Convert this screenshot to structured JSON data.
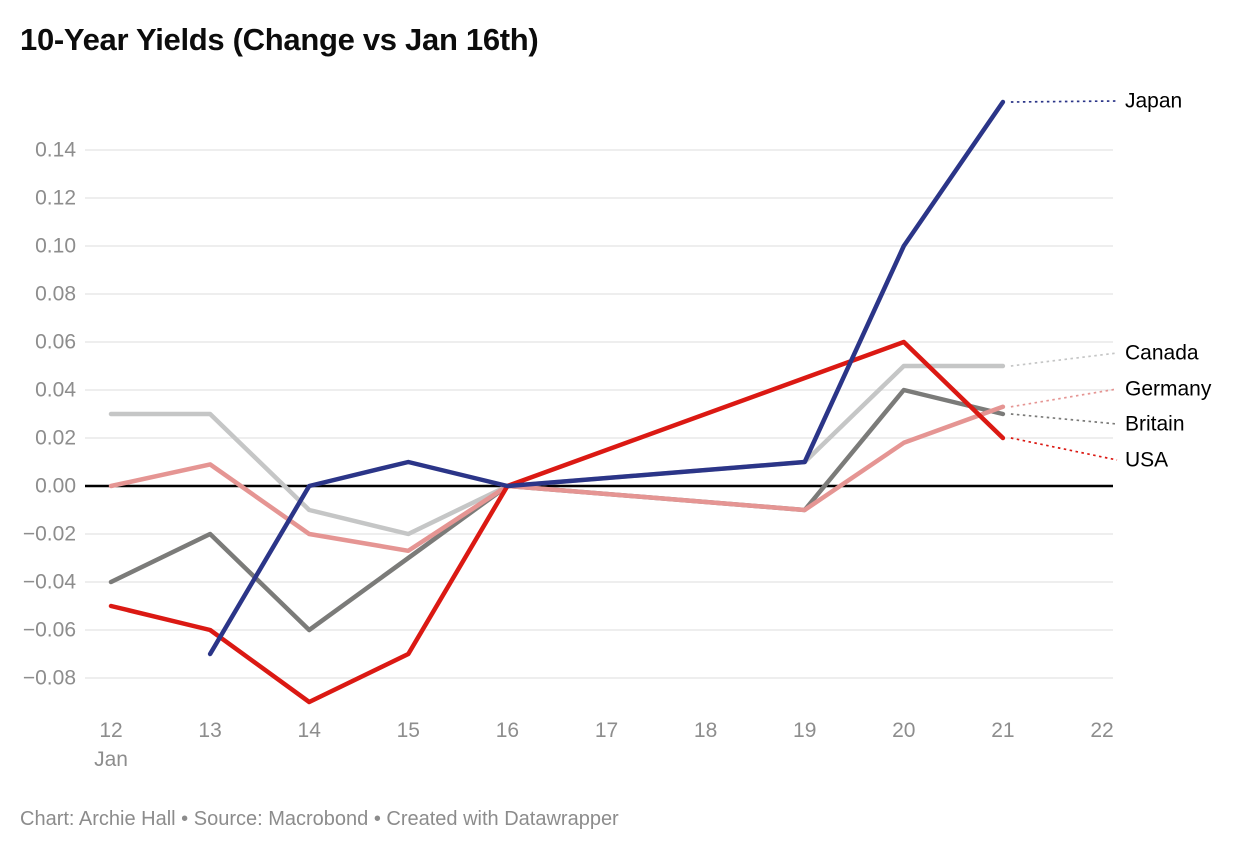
{
  "header": {
    "title": "10-Year Yields (Change vs Jan 16th)"
  },
  "footer": {
    "text": "Chart: Archie Hall • Source: Macrobond • Created with Datawrapper"
  },
  "chart_data": {
    "type": "line",
    "title": "10-Year Yields (Change vs Jan 16th)",
    "xlabel": "",
    "ylabel": "",
    "x_unit": "day of January",
    "x_ticks": [
      12,
      13,
      14,
      15,
      16,
      17,
      18,
      19,
      20,
      21,
      22
    ],
    "x_first_tick_sublabel": "Jan",
    "y_ticks": [
      0.14,
      0.12,
      0.1,
      0.08,
      0.06,
      0.04,
      0.02,
      0.0,
      -0.02,
      -0.04,
      -0.06,
      -0.08
    ],
    "ylim": [
      -0.095,
      0.165
    ],
    "xlim": [
      12,
      22
    ],
    "grid": "horizontal",
    "baseline_value": 0,
    "baseline_color": "#000000",
    "gridline_color": "#e8e8e8",
    "tick_label_color": "#8d8d8d",
    "legend_position": "right-direct-labels",
    "series": [
      {
        "name": "Japan",
        "color": "#2b3588",
        "days": [
          13,
          14,
          15,
          16,
          19,
          20,
          21
        ],
        "values": [
          -0.07,
          0.0,
          0.01,
          0.0,
          0.01,
          0.1,
          0.16
        ]
      },
      {
        "name": "Canada",
        "color": "#c5c6c6",
        "days": [
          12,
          13,
          14,
          15,
          16,
          19,
          20,
          21
        ],
        "values": [
          0.03,
          0.03,
          -0.01,
          -0.02,
          0.0,
          0.01,
          0.05,
          0.05
        ]
      },
      {
        "name": "Germany",
        "color": "#e59593",
        "days": [
          12,
          13,
          14,
          15,
          16,
          19,
          20,
          21
        ],
        "values": [
          0.0,
          0.009,
          -0.02,
          -0.027,
          0.0,
          -0.01,
          0.018,
          0.033
        ]
      },
      {
        "name": "Britain",
        "color": "#7b7b79",
        "days": [
          12,
          13,
          14,
          15,
          16,
          19,
          20,
          21
        ],
        "values": [
          -0.04,
          -0.02,
          -0.06,
          -0.03,
          0.0,
          -0.01,
          0.04,
          0.03
        ]
      },
      {
        "name": "USA",
        "color": "#db1913",
        "days": [
          12,
          13,
          14,
          15,
          16,
          20,
          21
        ],
        "values": [
          -0.05,
          -0.06,
          -0.09,
          -0.07,
          0.0,
          0.06,
          0.02
        ]
      }
    ]
  }
}
